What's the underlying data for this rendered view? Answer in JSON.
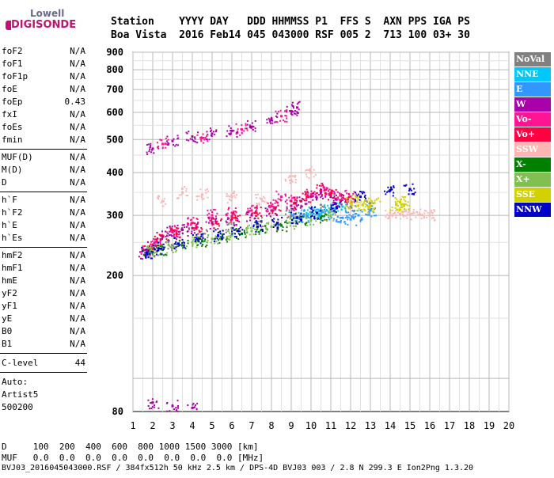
{
  "logo": {
    "line1": "Lowell",
    "line2": "DIGISONDE"
  },
  "header": {
    "line1": "Station    YYYY DAY   DDD HHMMSS P1  FFS S  AXN PPS IGA PS",
    "line2": "Boa Vista  2016 Feb14 045 043000 RSF 005 2  713 100 03+ 30"
  },
  "params": {
    "group1": [
      {
        "name": "foF2",
        "value": "N/A"
      },
      {
        "name": "foF1",
        "value": "N/A"
      },
      {
        "name": "foF1p",
        "value": "N/A"
      },
      {
        "name": "foE",
        "value": "N/A"
      },
      {
        "name": "foEp",
        "value": "0.43"
      },
      {
        "name": "fxI",
        "value": "N/A"
      },
      {
        "name": "foEs",
        "value": "N/A"
      },
      {
        "name": "fmin",
        "value": "N/A"
      }
    ],
    "group2": [
      {
        "name": "MUF(D)",
        "value": "N/A"
      },
      {
        "name": "M(D)",
        "value": "N/A"
      },
      {
        "name": "D",
        "value": "N/A"
      }
    ],
    "group3": [
      {
        "name": "h`F",
        "value": "N/A"
      },
      {
        "name": "h`F2",
        "value": "N/A"
      },
      {
        "name": "h`E",
        "value": "N/A"
      },
      {
        "name": "h`Es",
        "value": "N/A"
      }
    ],
    "group4": [
      {
        "name": "hmF2",
        "value": "N/A"
      },
      {
        "name": "hmF1",
        "value": "N/A"
      },
      {
        "name": "hmE",
        "value": "N/A"
      },
      {
        "name": "yF2",
        "value": "N/A"
      },
      {
        "name": "yF1",
        "value": "N/A"
      },
      {
        "name": "yE",
        "value": "N/A"
      },
      {
        "name": "B0",
        "value": "N/A"
      },
      {
        "name": "B1",
        "value": "N/A"
      }
    ],
    "clevel": {
      "name": "C-level",
      "value": "44"
    },
    "auto": [
      "Auto:",
      "Artist5",
      "500200"
    ]
  },
  "legend": [
    {
      "label": "NoVal",
      "color": "#808080"
    },
    {
      "label": "NNE",
      "color": "#00c8ff"
    },
    {
      "label": "E",
      "color": "#3296ff"
    },
    {
      "label": "W",
      "color": "#aa00aa"
    },
    {
      "label": "Vo-",
      "color": "#ff1493"
    },
    {
      "label": "Vo+",
      "color": "#ff0040"
    },
    {
      "label": "SSW",
      "color": "#ffb4b4"
    },
    {
      "label": "X-",
      "color": "#008000"
    },
    {
      "label": "X+",
      "color": "#80c050"
    },
    {
      "label": "SSE",
      "color": "#d2d200"
    },
    {
      "label": "NNW",
      "color": "#0000c8"
    }
  ],
  "bottom": {
    "d_row": "D     100  200  400  600  800 1000 1500 3000 [km]",
    "muf_row": "MUF   0.0  0.0  0.0  0.0  0.0  0.0  0.0  0.0 [MHz]",
    "footer": "BVJ03_2016045043000.RSF / 384fx512h 50 kHz 2.5 km / DPS-4D BVJ03 003 / 2.8 N 299.3 E Ion2Png 1.3.20"
  },
  "chart_data": {
    "type": "scatter",
    "title": "",
    "xlabel": "",
    "ylabel": "",
    "xlim": [
      1,
      20
    ],
    "ylim": [
      80,
      900
    ],
    "x_ticks": [
      1,
      2,
      3,
      4,
      5,
      6,
      7,
      8,
      9,
      10,
      11,
      12,
      13,
      14,
      15,
      16,
      17,
      18,
      19,
      20
    ],
    "y_ticks": [
      80,
      200,
      300,
      400,
      500,
      600,
      700,
      800,
      900
    ],
    "y_scale": "log",
    "grid": true,
    "legend_position": "right",
    "series": [
      {
        "name": "NoVal",
        "points": [
          [
            2.0,
            235
          ],
          [
            3.0,
            245
          ],
          [
            4.5,
            262
          ],
          [
            6.0,
            275
          ],
          [
            7.5,
            288
          ],
          [
            9.0,
            300
          ],
          [
            10.5,
            310
          ],
          [
            12.0,
            318
          ],
          [
            13.0,
            325
          ]
        ]
      },
      {
        "name": "NNE",
        "points": [
          [
            9.6,
            300
          ],
          [
            10.0,
            305
          ],
          [
            10.4,
            308
          ],
          [
            10.8,
            310
          ],
          [
            11.2,
            315
          ],
          [
            11.6,
            318
          ]
        ]
      },
      {
        "name": "E",
        "points": [
          [
            9.2,
            295
          ],
          [
            9.8,
            298
          ],
          [
            10.4,
            302
          ],
          [
            11.0,
            300
          ],
          [
            11.6,
            295
          ],
          [
            12.0,
            292
          ],
          [
            12.4,
            300
          ],
          [
            13.0,
            310
          ]
        ]
      },
      {
        "name": "W",
        "points": [
          [
            1.6,
            230
          ],
          [
            2.0,
            245
          ],
          [
            2.5,
            260
          ],
          [
            3.0,
            268
          ],
          [
            3.5,
            272
          ],
          [
            4.0,
            275
          ],
          [
            5.0,
            285
          ],
          [
            6.0,
            292
          ],
          [
            7.0,
            300
          ],
          [
            8.0,
            310
          ],
          [
            9.0,
            320
          ],
          [
            9.5,
            330
          ],
          [
            10.0,
            340
          ],
          [
            10.5,
            350
          ],
          [
            11.0,
            340
          ],
          [
            11.5,
            330
          ],
          [
            2.0,
            470
          ],
          [
            3.0,
            495
          ],
          [
            4.0,
            510
          ],
          [
            5.0,
            520
          ],
          [
            6.0,
            530
          ],
          [
            7.0,
            545
          ],
          [
            8.0,
            575
          ],
          [
            9.0,
            605
          ],
          [
            9.3,
            620
          ],
          [
            2.0,
            85
          ],
          [
            3.0,
            83
          ],
          [
            4.0,
            82
          ]
        ]
      },
      {
        "name": "Vo-",
        "points": [
          [
            1.7,
            235
          ],
          [
            2.2,
            250
          ],
          [
            3.0,
            270
          ],
          [
            4.0,
            285
          ],
          [
            5.0,
            300
          ],
          [
            6.0,
            305
          ],
          [
            7.0,
            310
          ],
          [
            8.0,
            320
          ],
          [
            8.5,
            340
          ],
          [
            9.0,
            330
          ],
          [
            10.0,
            345
          ],
          [
            10.8,
            360
          ],
          [
            11.5,
            345
          ],
          [
            12.0,
            340
          ],
          [
            2.5,
            485
          ],
          [
            4.5,
            505
          ],
          [
            6.5,
            535
          ],
          [
            8.5,
            585
          ]
        ]
      },
      {
        "name": "Vo+",
        "points": [
          [
            1.8,
            238
          ],
          [
            2.4,
            255
          ],
          [
            3.2,
            265
          ],
          [
            4.2,
            275
          ],
          [
            5.2,
            285
          ],
          [
            6.2,
            295
          ],
          [
            7.2,
            305
          ],
          [
            8.2,
            315
          ],
          [
            9.2,
            325
          ],
          [
            9.8,
            340
          ],
          [
            10.5,
            355
          ],
          [
            11.0,
            345
          ],
          [
            11.8,
            335
          ]
        ]
      },
      {
        "name": "SSW",
        "points": [
          [
            2.5,
            330
          ],
          [
            3.5,
            350
          ],
          [
            4.5,
            345
          ],
          [
            6.0,
            340
          ],
          [
            7.5,
            335
          ],
          [
            9.0,
            380
          ],
          [
            10.0,
            400
          ],
          [
            14.0,
            305
          ],
          [
            14.5,
            303
          ],
          [
            15.0,
            302
          ],
          [
            15.5,
            301
          ],
          [
            16.0,
            300
          ]
        ]
      },
      {
        "name": "X-",
        "points": [
          [
            1.8,
            232
          ],
          [
            2.5,
            238
          ],
          [
            3.5,
            245
          ],
          [
            4.5,
            252
          ],
          [
            5.5,
            258
          ],
          [
            6.5,
            265
          ],
          [
            7.5,
            272
          ],
          [
            8.5,
            280
          ],
          [
            9.5,
            290
          ],
          [
            10.5,
            295
          ]
        ]
      },
      {
        "name": "X+",
        "points": [
          [
            2.0,
            236
          ],
          [
            3.0,
            242
          ],
          [
            4.0,
            250
          ],
          [
            5.0,
            256
          ],
          [
            6.0,
            262
          ],
          [
            7.0,
            270
          ],
          [
            8.0,
            278
          ],
          [
            9.0,
            285
          ],
          [
            10.0,
            292
          ],
          [
            11.0,
            300
          ]
        ]
      },
      {
        "name": "SSE",
        "points": [
          [
            12.0,
            325
          ],
          [
            12.3,
            330
          ],
          [
            12.6,
            322
          ],
          [
            12.9,
            318
          ],
          [
            13.2,
            326
          ],
          [
            14.3,
            322
          ],
          [
            14.5,
            328
          ],
          [
            14.7,
            320
          ]
        ]
      },
      {
        "name": "NNW",
        "points": [
          [
            1.7,
            233
          ],
          [
            2.3,
            240
          ],
          [
            3.3,
            248
          ],
          [
            4.3,
            255
          ],
          [
            5.3,
            262
          ],
          [
            6.3,
            270
          ],
          [
            7.3,
            278
          ],
          [
            8.3,
            285
          ],
          [
            9.3,
            295
          ],
          [
            10.3,
            305
          ],
          [
            11.3,
            315
          ],
          [
            12.5,
            340
          ],
          [
            14.0,
            355
          ],
          [
            15.0,
            358
          ]
        ]
      }
    ]
  }
}
